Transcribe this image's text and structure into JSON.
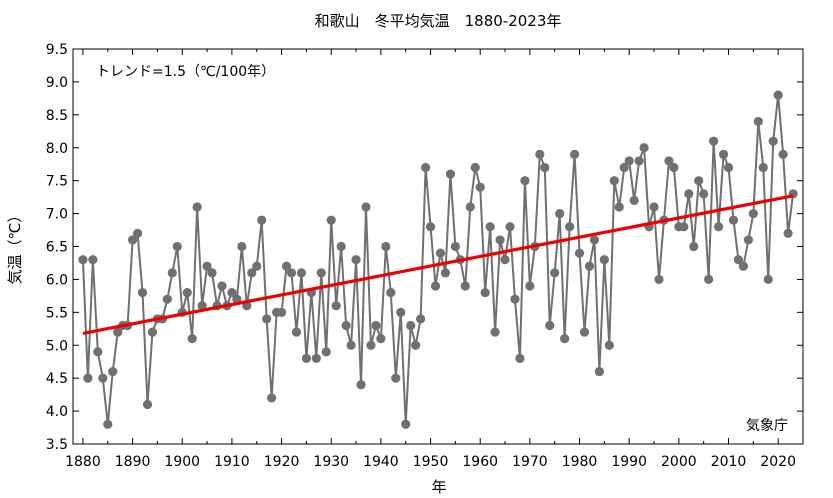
{
  "chart_data": {
    "type": "line",
    "title": "和歌山　冬平均気温　1880-2023年",
    "xlabel": "年",
    "ylabel": "気温（℃）",
    "annotation": "トレンド=1.5（℃/100年）",
    "credit": "気象庁",
    "xlim": [
      1878,
      2025
    ],
    "ylim": [
      3.5,
      9.5
    ],
    "x_ticks": [
      "1880",
      "1890",
      "1900",
      "1910",
      "1920",
      "1930",
      "1940",
      "1950",
      "1960",
      "1970",
      "1980",
      "1990",
      "2000",
      "2010",
      "2020"
    ],
    "y_ticks": [
      "3.5",
      "4.0",
      "4.5",
      "5.0",
      "5.5",
      "6.0",
      "6.5",
      "7.0",
      "7.5",
      "8.0",
      "8.5",
      "9.0",
      "9.5"
    ],
    "grid": false,
    "series": [
      {
        "color": "#707070",
        "x": [
          1880,
          1881,
          1882,
          1883,
          1884,
          1885,
          1886,
          1887,
          1888,
          1889,
          1890,
          1891,
          1892,
          1893,
          1894,
          1895,
          1896,
          1897,
          1898,
          1899,
          1900,
          1901,
          1902,
          1903,
          1904,
          1905,
          1906,
          1907,
          1908,
          1909,
          1910,
          1911,
          1912,
          1913,
          1914,
          1915,
          1916,
          1917,
          1918,
          1919,
          1920,
          1921,
          1922,
          1923,
          1924,
          1925,
          1926,
          1927,
          1928,
          1929,
          1930,
          1931,
          1932,
          1933,
          1934,
          1935,
          1936,
          1937,
          1938,
          1939,
          1940,
          1941,
          1942,
          1943,
          1944,
          1945,
          1946,
          1947,
          1948,
          1949,
          1950,
          1951,
          1952,
          1953,
          1954,
          1955,
          1956,
          1957,
          1958,
          1959,
          1960,
          1961,
          1962,
          1963,
          1964,
          1965,
          1966,
          1967,
          1968,
          1969,
          1970,
          1971,
          1972,
          1973,
          1974,
          1975,
          1976,
          1977,
          1978,
          1979,
          1980,
          1981,
          1982,
          1983,
          1984,
          1985,
          1986,
          1987,
          1988,
          1989,
          1990,
          1991,
          1992,
          1993,
          1994,
          1995,
          1996,
          1997,
          1998,
          1999,
          2000,
          2001,
          2002,
          2003,
          2004,
          2005,
          2006,
          2007,
          2008,
          2009,
          2010,
          2011,
          2012,
          2013,
          2014,
          2015,
          2016,
          2017,
          2018,
          2019,
          2020,
          2021,
          2022,
          2023
        ],
        "y": [
          6.3,
          4.5,
          6.3,
          4.9,
          4.5,
          3.8,
          4.6,
          5.2,
          5.3,
          5.3,
          6.6,
          6.7,
          5.8,
          4.1,
          5.2,
          5.4,
          5.4,
          5.7,
          6.1,
          6.5,
          5.5,
          5.8,
          5.1,
          7.1,
          5.6,
          6.2,
          6.1,
          5.6,
          5.9,
          5.6,
          5.8,
          5.7,
          6.5,
          5.6,
          6.1,
          6.2,
          6.9,
          5.4,
          4.2,
          5.5,
          5.5,
          6.2,
          6.1,
          5.2,
          6.1,
          4.8,
          5.8,
          4.8,
          6.1,
          4.9,
          6.9,
          5.6,
          6.5,
          5.3,
          5.0,
          6.3,
          4.4,
          7.1,
          5.0,
          5.3,
          5.1,
          6.5,
          5.8,
          4.5,
          5.5,
          3.8,
          5.3,
          5.0,
          5.4,
          7.7,
          6.8,
          5.9,
          6.4,
          6.1,
          7.6,
          6.5,
          6.3,
          5.9,
          7.1,
          7.7,
          7.4,
          5.8,
          6.8,
          5.2,
          6.6,
          6.3,
          6.8,
          5.7,
          4.8,
          7.5,
          5.9,
          6.5,
          7.9,
          7.7,
          5.3,
          6.1,
          7.0,
          5.1,
          6.8,
          7.9,
          6.4,
          5.2,
          6.2,
          6.6,
          4.6,
          6.3,
          5.0,
          7.5,
          7.1,
          7.7,
          7.8,
          7.2,
          7.8,
          8.0,
          6.8,
          7.1,
          6.0,
          6.9,
          7.8,
          7.7,
          6.8,
          6.8,
          7.3,
          6.5,
          7.5,
          7.3,
          6.0,
          8.1,
          6.8,
          7.9,
          7.7,
          6.9,
          6.3,
          6.2,
          6.6,
          7.0,
          8.4,
          7.7,
          6.0,
          8.1,
          8.8,
          7.9,
          6.7,
          7.3
        ]
      },
      {
        "color": "#ee0000",
        "x": [
          1880,
          2023
        ],
        "y": [
          5.18,
          7.27
        ]
      }
    ]
  }
}
